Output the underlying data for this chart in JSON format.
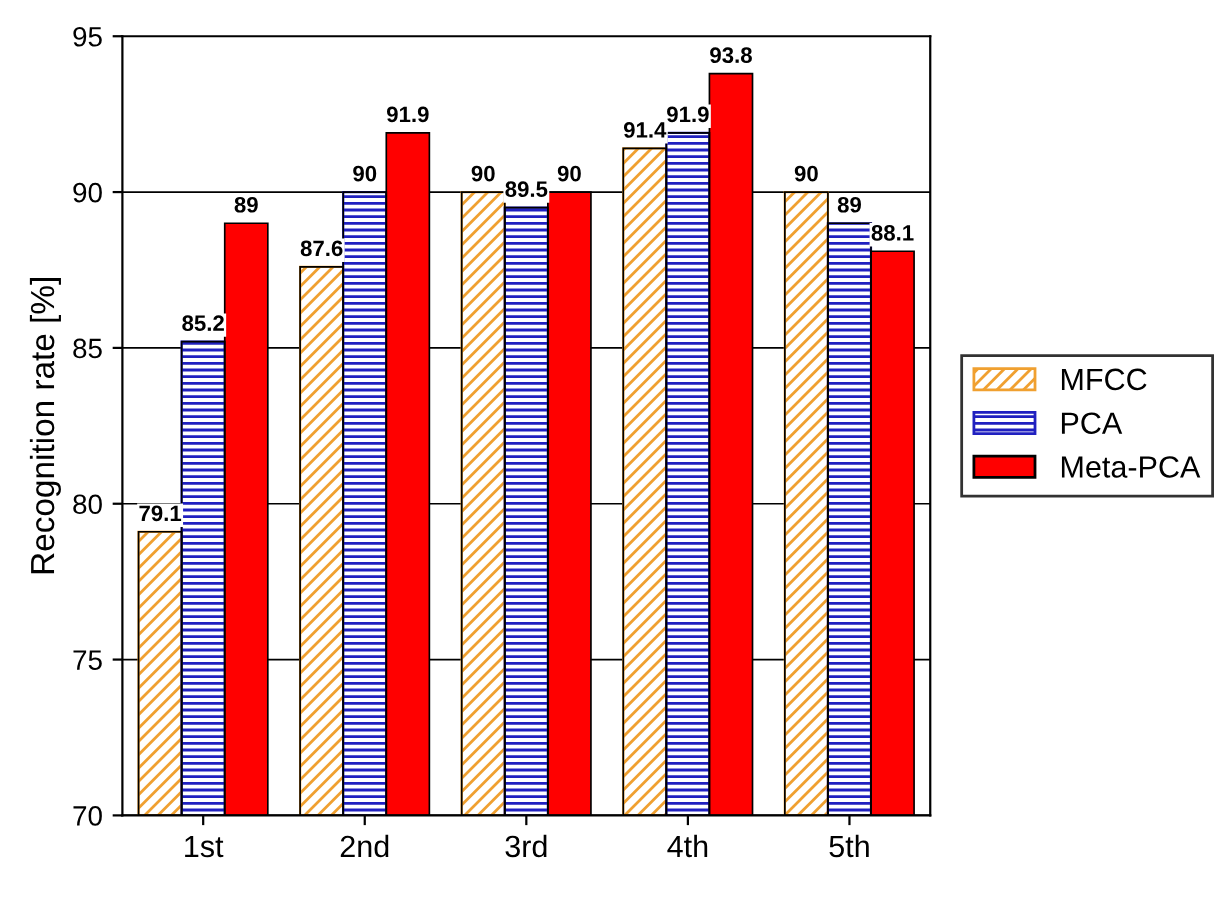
{
  "chart_data": {
    "type": "bar",
    "ylabel": "Recognition rate [%]",
    "categories": [
      "1st",
      "2nd",
      "3rd",
      "4th",
      "5th"
    ],
    "series": [
      {
        "name": "MFCC",
        "color": "#f0a030",
        "values": [
          79.1,
          87.6,
          90,
          91.4,
          90
        ]
      },
      {
        "name": "PCA",
        "color": "#2020c0",
        "values": [
          85.2,
          90,
          89.5,
          91.9,
          89
        ]
      },
      {
        "name": "Meta-PCA",
        "color": "#ff0000",
        "values": [
          89,
          91.9,
          90,
          93.8,
          88.1
        ]
      }
    ],
    "ylim": [
      70,
      95
    ],
    "yticks": [
      70,
      75,
      80,
      85,
      90,
      95
    ],
    "grid": "y",
    "legend": "right",
    "data_labels": true
  }
}
